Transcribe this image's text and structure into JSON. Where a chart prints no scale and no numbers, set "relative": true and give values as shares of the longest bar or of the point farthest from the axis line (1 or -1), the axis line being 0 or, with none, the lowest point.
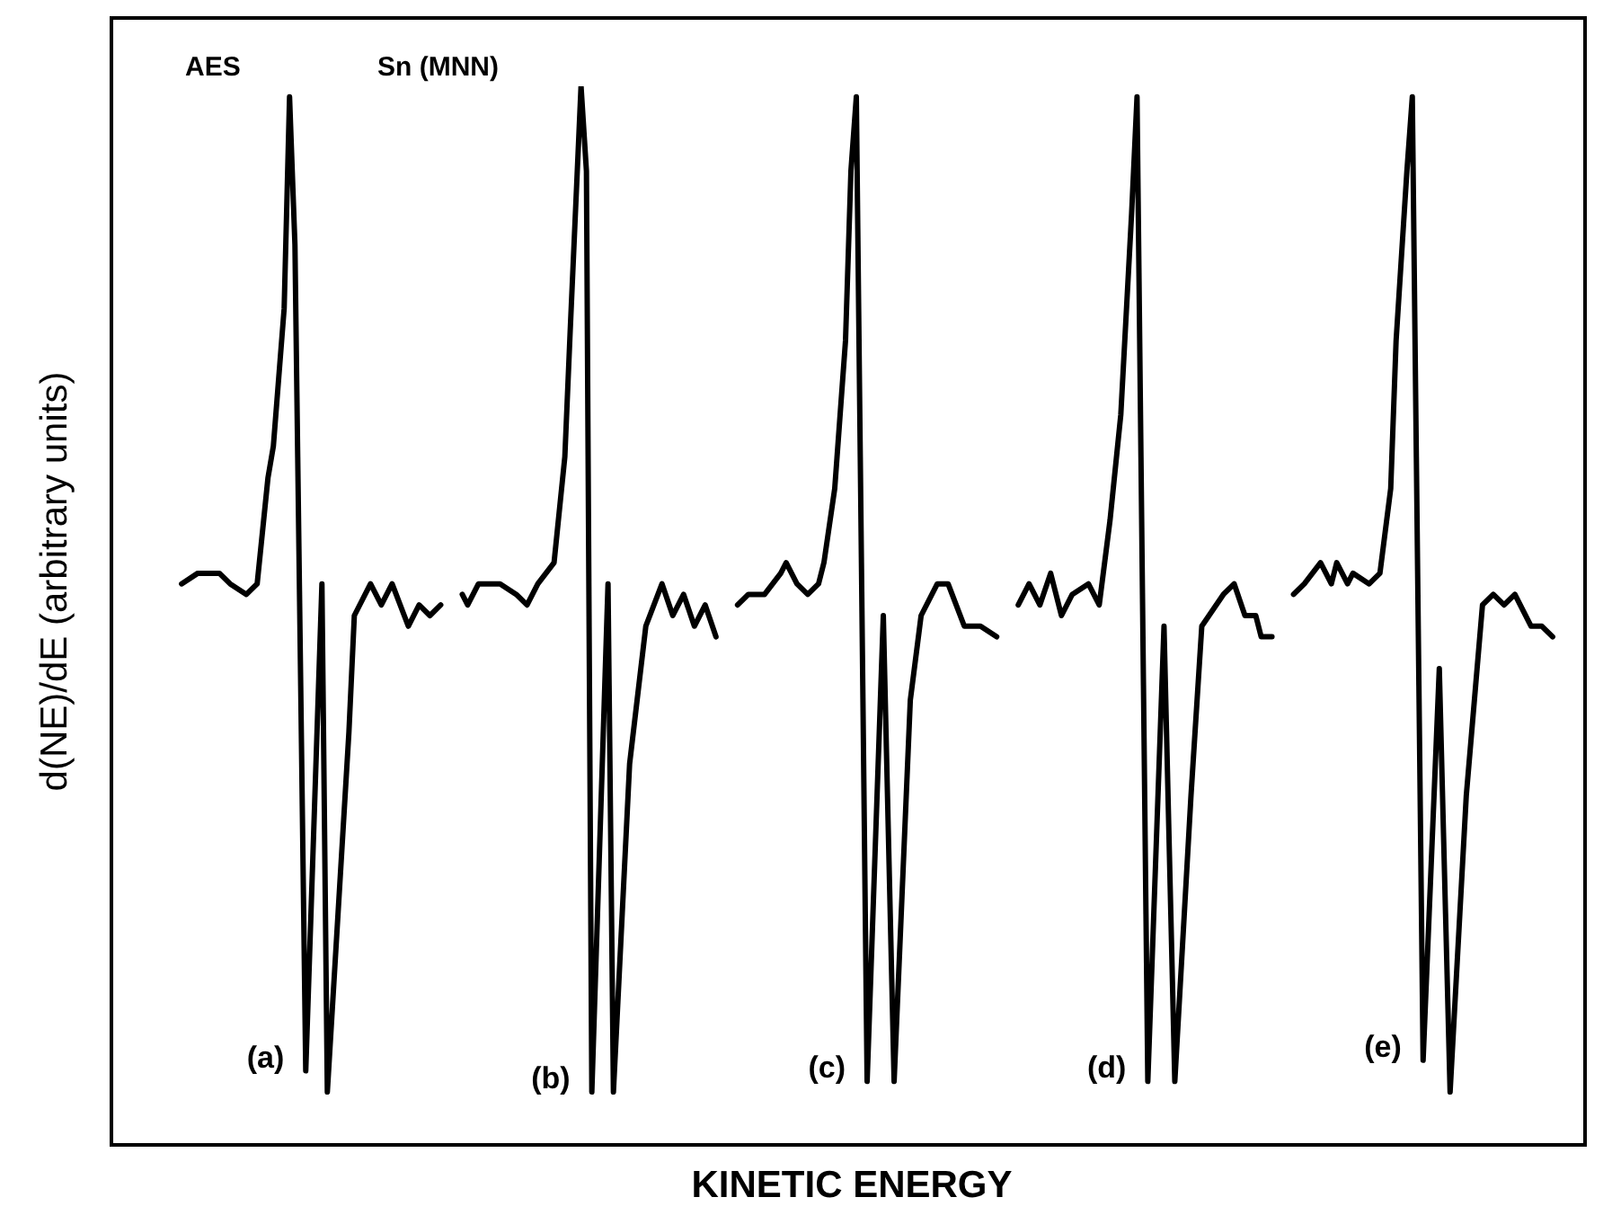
{
  "chart_data": {
    "type": "line",
    "xlabel": "KINETIC ENERGY",
    "ylabel": "d(NE)/dE (arbitrary units)",
    "annotations": [
      "AES",
      "Sn (MNN)"
    ],
    "relative": true,
    "categories": [
      null,
      null,
      null,
      null,
      null,
      null,
      null,
      null,
      null,
      null,
      null,
      null,
      null,
      null,
      null,
      null,
      null,
      null,
      null,
      null,
      null,
      null,
      null,
      null,
      null,
      null,
      null,
      null,
      null,
      null,
      null,
      null,
      null,
      null,
      null,
      null,
      null,
      null,
      null,
      null,
      null,
      null,
      null,
      null,
      null,
      null,
      null,
      null,
      null,
      null,
      null,
      null,
      null,
      null,
      null,
      null,
      null,
      null,
      null,
      null,
      null,
      null,
      null,
      null,
      null,
      null,
      null,
      null,
      null,
      null,
      null,
      null,
      null,
      null,
      null,
      null,
      null,
      null,
      null,
      null,
      null,
      null,
      null,
      null,
      null,
      null,
      null,
      null,
      null,
      null,
      null,
      null,
      null,
      null,
      null,
      null,
      null,
      null,
      null,
      null,
      null,
      null,
      null,
      null,
      null,
      null,
      null,
      null,
      null,
      null,
      null,
      null,
      null,
      null,
      null,
      null,
      null,
      null,
      null,
      null,
      null,
      null,
      null,
      null,
      null,
      null,
      null,
      null,
      null,
      null,
      null,
      null,
      null,
      null,
      null,
      null,
      null,
      null,
      null,
      null,
      null,
      null,
      null,
      null,
      null,
      null,
      null,
      null,
      null,
      null,
      null,
      null,
      null,
      null,
      null,
      null,
      null,
      null,
      null,
      null,
      null,
      null,
      null,
      null,
      null,
      null,
      null,
      null,
      null,
      null,
      null,
      null,
      null,
      null,
      null,
      null,
      null,
      null,
      null,
      null,
      null,
      null,
      null,
      null,
      null,
      null,
      null,
      null,
      null,
      null,
      null,
      null,
      null,
      null,
      null,
      null,
      null,
      null,
      null,
      null,
      null,
      null,
      null,
      null,
      null,
      null,
      null,
      null,
      null,
      null,
      null,
      null,
      null,
      null,
      null,
      null,
      null,
      null,
      null,
      null,
      null,
      null,
      null,
      null,
      null,
      null,
      null,
      null,
      null,
      null,
      null,
      null,
      null,
      null,
      null,
      null,
      null,
      null,
      null,
      null,
      null,
      null,
      null,
      null,
      null,
      null,
      null,
      null,
      null,
      null,
      null,
      null,
      null,
      null,
      null,
      null,
      null,
      null,
      null,
      null,
      null,
      null,
      null,
      null,
      null,
      null,
      null,
      null,
      null,
      null,
      null,
      null,
      null,
      null
    ],
    "series": [
      {
        "name": "(a)",
        "color": "#000000",
        "values": [
          null,
          null,
          null,
          null,
          null,
          null,
          null,
          null,
          null,
          null,
          null,
          null,
          null,
          0.53,
          null,
          null,
          0.54,
          null,
          null,
          null,
          0.54,
          null,
          0.53,
          null,
          null,
          0.52,
          null,
          0.53,
          null,
          0.63,
          0.66,
          null,
          0.79,
          0.99,
          0.85,
          null,
          0.07,
          null,
          null,
          0.53,
          0.05,
          null,
          null,
          null,
          0.39,
          0.5,
          null,
          null,
          0.53,
          null,
          0.51,
          null,
          0.53,
          null,
          null,
          0.49,
          null,
          0.51,
          null,
          0.5,
          null,
          0.51,
          null,
          null,
          null,
          null,
          null,
          null,
          null,
          null,
          null,
          null,
          null,
          null,
          null,
          null,
          null,
          null,
          null,
          null,
          null,
          null,
          null,
          null,
          null,
          null,
          null,
          null,
          null,
          null,
          null,
          null,
          null,
          null,
          null,
          null,
          null,
          null,
          null,
          null,
          null,
          null,
          null,
          null,
          null,
          null,
          null,
          null,
          null,
          null,
          null,
          null,
          null,
          null,
          null,
          null,
          null,
          null,
          null,
          null,
          null,
          null,
          null,
          null,
          null,
          null,
          null,
          null,
          null,
          null,
          null,
          null,
          null,
          null,
          null,
          null,
          null,
          null,
          null,
          null,
          null,
          null,
          null,
          null,
          null,
          null,
          null,
          null,
          null,
          null,
          null,
          null,
          null,
          null,
          null,
          null,
          null,
          null,
          null,
          null,
          null,
          null,
          null,
          null,
          null,
          null,
          null,
          null,
          null,
          null,
          null,
          null,
          null,
          null,
          null,
          null,
          null,
          null,
          null,
          null,
          null,
          null,
          null,
          null,
          null,
          null,
          null,
          null,
          null,
          null,
          null,
          null,
          null,
          null,
          null,
          null,
          null,
          null,
          null,
          null,
          null,
          null,
          null,
          null,
          null,
          null,
          null,
          null,
          null,
          null,
          null,
          null,
          null,
          null,
          null,
          null,
          null,
          null,
          null,
          null,
          null,
          null,
          null,
          null,
          null,
          null,
          null,
          null,
          null,
          null,
          null,
          null,
          null,
          null,
          null,
          null,
          null,
          null,
          null,
          null,
          null,
          null,
          null,
          null,
          null,
          null,
          null,
          null,
          null,
          null,
          null,
          null,
          null,
          null,
          null,
          null,
          null,
          null,
          null,
          null,
          null,
          null,
          null,
          null,
          null,
          null,
          null,
          null,
          null,
          null,
          null,
          null,
          null,
          null
        ]
      },
      {
        "name": "(b)",
        "color": "#000000",
        "values": [
          null,
          null,
          null,
          null,
          null,
          null,
          null,
          null,
          null,
          null,
          null,
          null,
          null,
          null,
          null,
          null,
          null,
          null,
          null,
          null,
          null,
          null,
          null,
          null,
          null,
          null,
          null,
          null,
          null,
          null,
          null,
          null,
          null,
          null,
          null,
          null,
          null,
          null,
          null,
          null,
          null,
          null,
          null,
          null,
          null,
          null,
          null,
          null,
          null,
          null,
          null,
          null,
          null,
          null,
          null,
          null,
          null,
          null,
          null,
          null,
          null,
          null,
          null,
          null,
          null,
          0.52,
          0.51,
          null,
          0.53,
          null,
          null,
          null,
          0.53,
          null,
          null,
          0.52,
          null,
          0.51,
          null,
          0.53,
          null,
          null,
          0.55,
          null,
          0.65,
          0.77,
          null,
          1,
          0.92,
          0.05,
          null,
          null,
          0.53,
          0.05,
          null,
          null,
          0.36,
          null,
          null,
          0.49,
          null,
          null,
          0.53,
          null,
          0.5,
          null,
          0.52,
          null,
          0.49,
          null,
          0.51,
          null,
          0.48,
          null,
          null,
          null,
          null,
          null,
          null,
          null,
          null,
          null,
          null,
          null,
          null,
          null,
          null,
          null,
          null,
          null,
          null,
          null,
          null,
          null,
          null,
          null,
          null,
          null,
          null,
          null,
          null,
          null,
          null,
          null,
          null,
          null,
          null,
          null,
          null,
          null,
          null,
          null,
          null,
          null,
          null,
          null,
          null,
          null,
          null,
          null,
          null,
          null,
          null,
          null,
          null,
          null,
          null,
          null,
          null,
          null,
          null,
          null,
          null,
          null,
          null,
          null,
          null,
          null,
          null,
          null,
          null,
          null,
          null,
          null,
          null,
          null,
          null,
          null,
          null,
          null,
          null,
          null,
          null,
          null,
          null,
          null,
          null,
          null,
          null,
          null,
          null,
          null,
          null,
          null,
          null,
          null,
          null,
          null,
          null,
          null,
          null,
          null,
          null,
          null,
          null,
          null,
          null,
          null,
          null,
          null,
          null,
          null,
          null,
          null,
          null,
          null,
          null,
          null,
          null,
          null,
          null,
          null,
          null,
          null,
          null,
          null,
          null,
          null,
          null,
          null,
          null,
          null,
          null,
          null,
          null,
          null,
          null,
          null,
          null,
          null,
          null,
          null,
          null,
          null,
          null,
          null,
          null,
          null,
          null,
          null,
          null,
          null,
          null,
          null,
          null,
          null,
          null,
          null,
          null,
          null,
          null,
          null,
          null,
          null
        ]
      },
      {
        "name": "(c)",
        "color": "#000000",
        "values": [
          null,
          null,
          null,
          null,
          null,
          null,
          null,
          null,
          null,
          null,
          null,
          null,
          null,
          null,
          null,
          null,
          null,
          null,
          null,
          null,
          null,
          null,
          null,
          null,
          null,
          null,
          null,
          null,
          null,
          null,
          null,
          null,
          null,
          null,
          null,
          null,
          null,
          null,
          null,
          null,
          null,
          null,
          null,
          null,
          null,
          null,
          null,
          null,
          null,
          null,
          null,
          null,
          null,
          null,
          null,
          null,
          null,
          null,
          null,
          null,
          null,
          null,
          null,
          null,
          null,
          null,
          null,
          null,
          null,
          null,
          null,
          null,
          null,
          null,
          null,
          null,
          null,
          null,
          null,
          null,
          null,
          null,
          null,
          null,
          null,
          null,
          null,
          null,
          null,
          null,
          null,
          null,
          null,
          null,
          null,
          null,
          null,
          null,
          null,
          null,
          null,
          null,
          null,
          null,
          null,
          null,
          null,
          null,
          null,
          null,
          null,
          null,
          null,
          null,
          null,
          null,
          0.51,
          null,
          0.52,
          null,
          null,
          0.52,
          null,
          null,
          0.54,
          0.55,
          null,
          0.53,
          null,
          0.52,
          null,
          0.53,
          0.55,
          null,
          0.62,
          null,
          0.76,
          0.92,
          0.99,
          null,
          0.06,
          null,
          null,
          0.5,
          null,
          0.06,
          null,
          null,
          0.42,
          null,
          0.5,
          null,
          null,
          0.53,
          null,
          0.53,
          null,
          null,
          0.49,
          null,
          null,
          0.49,
          null,
          null,
          0.48,
          null,
          null,
          null,
          null,
          null,
          null,
          null,
          null,
          null,
          null,
          null,
          null,
          null,
          null,
          null,
          null,
          null,
          null,
          null,
          null,
          null,
          null,
          null,
          null,
          null,
          null,
          null,
          null,
          null,
          null,
          null,
          null,
          null,
          null,
          null,
          null,
          null,
          null,
          null,
          null,
          null,
          null,
          null,
          null,
          null,
          null,
          null,
          null,
          null,
          null,
          null,
          null,
          null,
          null,
          null,
          null,
          null,
          null,
          null,
          null,
          null,
          null,
          null,
          null,
          null,
          null,
          null,
          null,
          null,
          null,
          null,
          null,
          null,
          null,
          null,
          null,
          null,
          null,
          null,
          null,
          null,
          null,
          null,
          null,
          null,
          null,
          null,
          null,
          null,
          null,
          null,
          null,
          null,
          null,
          null,
          null,
          null,
          null,
          null,
          null,
          null,
          null,
          null,
          null,
          null,
          null,
          null,
          null,
          null
        ]
      },
      {
        "name": "(d)",
        "color": "#000000",
        "values": [
          null,
          null,
          null,
          null,
          null,
          null,
          null,
          null,
          null,
          null,
          null,
          null,
          null,
          null,
          null,
          null,
          null,
          null,
          null,
          null,
          null,
          null,
          null,
          null,
          null,
          null,
          null,
          null,
          null,
          null,
          null,
          null,
          null,
          null,
          null,
          null,
          null,
          null,
          null,
          null,
          null,
          null,
          null,
          null,
          null,
          null,
          null,
          null,
          null,
          null,
          null,
          null,
          null,
          null,
          null,
          null,
          null,
          null,
          null,
          null,
          null,
          null,
          null,
          null,
          null,
          null,
          null,
          null,
          null,
          null,
          null,
          null,
          null,
          null,
          null,
          null,
          null,
          null,
          null,
          null,
          null,
          null,
          null,
          null,
          null,
          null,
          null,
          null,
          null,
          null,
          null,
          null,
          null,
          null,
          null,
          null,
          null,
          null,
          null,
          null,
          null,
          null,
          null,
          null,
          null,
          null,
          null,
          null,
          null,
          null,
          null,
          null,
          null,
          null,
          null,
          null,
          null,
          null,
          null,
          null,
          null,
          null,
          null,
          null,
          null,
          null,
          null,
          null,
          null,
          null,
          null,
          null,
          null,
          null,
          null,
          null,
          null,
          null,
          null,
          null,
          null,
          null,
          null,
          null,
          null,
          null,
          null,
          null,
          null,
          null,
          null,
          null,
          null,
          null,
          null,
          null,
          null,
          null,
          null,
          null,
          null,
          null,
          null,
          null,
          null,
          null,
          null,
          null,
          0.51,
          null,
          0.53,
          null,
          0.51,
          null,
          0.54,
          null,
          0.5,
          null,
          0.52,
          null,
          null,
          0.53,
          null,
          0.51,
          null,
          0.59,
          null,
          0.69,
          null,
          0.88,
          0.99,
          null,
          0.06,
          null,
          null,
          0.49,
          null,
          0.06,
          null,
          null,
          0.33,
          null,
          0.49,
          null,
          null,
          null,
          0.52,
          null,
          0.53,
          null,
          0.5,
          null,
          0.5,
          0.48,
          null,
          0.48,
          null,
          null,
          null,
          null,
          null,
          null,
          null,
          null,
          null,
          null,
          null,
          null,
          null,
          null,
          null,
          null,
          null,
          null,
          null,
          null,
          null,
          null,
          null,
          null,
          null,
          null,
          null,
          null,
          null,
          null,
          null,
          null,
          null,
          null,
          null,
          null,
          null,
          null,
          null,
          null,
          null,
          null,
          null,
          null,
          null,
          null,
          null,
          null,
          null,
          null,
          null,
          null,
          null,
          null,
          null,
          null,
          null,
          null
        ]
      },
      {
        "name": "(e)",
        "color": "#000000",
        "values": [
          null,
          null,
          null,
          null,
          null,
          null,
          null,
          null,
          null,
          null,
          null,
          null,
          null,
          null,
          null,
          null,
          null,
          null,
          null,
          null,
          null,
          null,
          null,
          null,
          null,
          null,
          null,
          null,
          null,
          null,
          null,
          null,
          null,
          null,
          null,
          null,
          null,
          null,
          null,
          null,
          null,
          null,
          null,
          null,
          null,
          null,
          null,
          null,
          null,
          null,
          null,
          null,
          null,
          null,
          null,
          null,
          null,
          null,
          null,
          null,
          null,
          null,
          null,
          null,
          null,
          null,
          null,
          null,
          null,
          null,
          null,
          null,
          null,
          null,
          null,
          null,
          null,
          null,
          null,
          null,
          null,
          null,
          null,
          null,
          null,
          null,
          null,
          null,
          null,
          null,
          null,
          null,
          null,
          null,
          null,
          null,
          null,
          null,
          null,
          null,
          null,
          null,
          null,
          null,
          null,
          null,
          null,
          null,
          null,
          null,
          null,
          null,
          null,
          null,
          null,
          null,
          null,
          null,
          null,
          null,
          null,
          null,
          null,
          null,
          null,
          null,
          null,
          null,
          null,
          null,
          null,
          null,
          null,
          null,
          null,
          null,
          null,
          null,
          null,
          null,
          null,
          null,
          null,
          null,
          null,
          null,
          null,
          null,
          null,
          null,
          null,
          null,
          null,
          null,
          null,
          null,
          null,
          null,
          null,
          null,
          null,
          null,
          null,
          null,
          null,
          null,
          null,
          null,
          null,
          null,
          null,
          null,
          null,
          null,
          null,
          null,
          null,
          null,
          null,
          null,
          null,
          null,
          null,
          null,
          null,
          null,
          null,
          null,
          null,
          null,
          null,
          null,
          null,
          null,
          null,
          null,
          null,
          null,
          null,
          null,
          null,
          null,
          null,
          null,
          null,
          null,
          null,
          null,
          null,
          null,
          null,
          null,
          null,
          null,
          null,
          null,
          null,
          null,
          null,
          0.52,
          null,
          0.53,
          null,
          null,
          0.55,
          null,
          0.53,
          0.55,
          null,
          0.53,
          0.54,
          null,
          null,
          0.53,
          null,
          0.54,
          null,
          0.62,
          0.76,
          null,
          0.92,
          0.99,
          null,
          0.08,
          null,
          null,
          0.45,
          null,
          0.05,
          null,
          null,
          0.33,
          null,
          null,
          0.51,
          null,
          0.52,
          null,
          0.51,
          null,
          0.52,
          null,
          null,
          0.49,
          null,
          0.49,
          null,
          0.48,
          null,
          null,
          null,
          null,
          null,
          null
        ]
      }
    ]
  }
}
